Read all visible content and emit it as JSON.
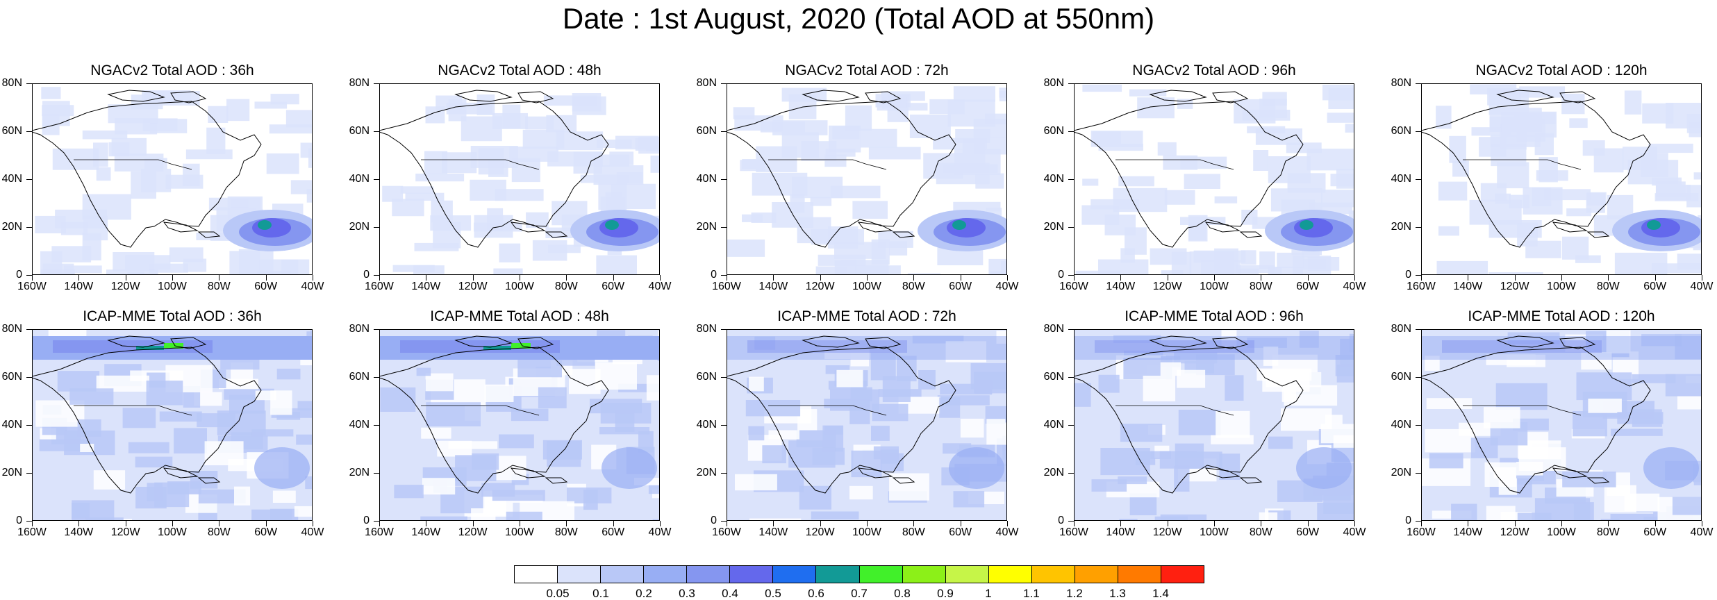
{
  "title": "Date : 1st August, 2020 (Total AOD at 550nm)",
  "y_ticks": [
    "80N",
    "60N",
    "40N",
    "20N",
    "0"
  ],
  "x_ticks": [
    "160W",
    "140W",
    "120W",
    "100W",
    "80W",
    "60W",
    "40W"
  ],
  "panels": [
    {
      "title": "NGACv2 Total AOD : 36h",
      "model": "NGACv2",
      "lead": "36h"
    },
    {
      "title": "NGACv2 Total AOD : 48h",
      "model": "NGACv2",
      "lead": "48h"
    },
    {
      "title": "NGACv2 Total AOD : 72h",
      "model": "NGACv2",
      "lead": "72h"
    },
    {
      "title": "NGACv2 Total AOD : 96h",
      "model": "NGACv2",
      "lead": "96h"
    },
    {
      "title": "NGACv2 Total AOD : 120h",
      "model": "NGACv2",
      "lead": "120h"
    },
    {
      "title": "ICAP-MME Total AOD : 36h",
      "model": "ICAP-MME",
      "lead": "36h"
    },
    {
      "title": "ICAP-MME Total AOD : 48h",
      "model": "ICAP-MME",
      "lead": "48h"
    },
    {
      "title": "ICAP-MME Total AOD : 72h",
      "model": "ICAP-MME",
      "lead": "72h"
    },
    {
      "title": "ICAP-MME Total AOD : 96h",
      "model": "ICAP-MME",
      "lead": "96h"
    },
    {
      "title": "ICAP-MME Total AOD : 120h",
      "model": "ICAP-MME",
      "lead": "120h"
    }
  ],
  "colorbar": {
    "labels": [
      "0.05",
      "0.1",
      "0.2",
      "0.3",
      "0.4",
      "0.5",
      "0.6",
      "0.7",
      "0.8",
      "0.9",
      "1",
      "1.1",
      "1.2",
      "1.3",
      "1.4"
    ],
    "colors": [
      "#ffffff",
      "#dbe3fb",
      "#b9c8f7",
      "#98aef4",
      "#8596f0",
      "#6468ec",
      "#1f6ef0",
      "#129a96",
      "#41f02a",
      "#8cf018",
      "#c6f548",
      "#ffff00",
      "#ffc400",
      "#ffa000",
      "#ff7a00",
      "#ff2010"
    ]
  }
}
